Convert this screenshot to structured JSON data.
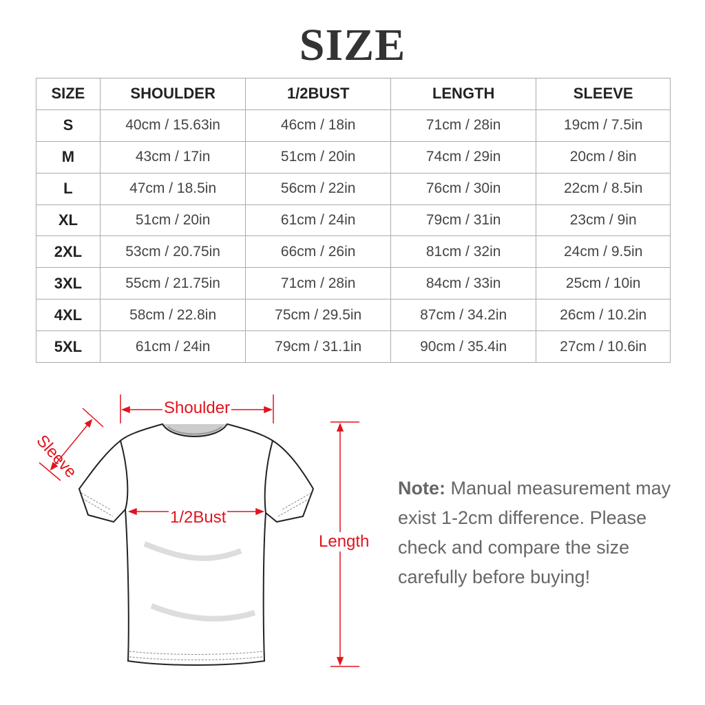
{
  "title": "SIZE",
  "table": {
    "headers": [
      "SIZE",
      "SHOULDER",
      "1/2BUST",
      "LENGTH",
      "SLEEVE"
    ],
    "rows": [
      [
        "S",
        "40cm / 15.63in",
        "46cm / 18in",
        "71cm / 28in",
        "19cm / 7.5in"
      ],
      [
        "M",
        "43cm / 17in",
        "51cm / 20in",
        "74cm / 29in",
        "20cm / 8in"
      ],
      [
        "L",
        "47cm / 18.5in",
        "56cm / 22in",
        "76cm / 30in",
        "22cm / 8.5in"
      ],
      [
        "XL",
        "51cm / 20in",
        "61cm / 24in",
        "79cm / 31in",
        "23cm / 9in"
      ],
      [
        "2XL",
        "53cm / 20.75in",
        "66cm / 26in",
        "81cm / 32in",
        "24cm / 9.5in"
      ],
      [
        "3XL",
        "55cm / 21.75in",
        "71cm / 28in",
        "84cm / 33in",
        "25cm / 10in"
      ],
      [
        "4XL",
        "58cm / 22.8in",
        "75cm / 29.5in",
        "87cm / 34.2in",
        "26cm / 10.2in"
      ],
      [
        "5XL",
        "61cm / 24in",
        "79cm / 31.1in",
        "90cm / 35.4in",
        "27cm / 10.6in"
      ]
    ]
  },
  "diagram": {
    "shoulder": "Shoulder",
    "sleeve": "Sleeve",
    "bust": "1/2Bust",
    "length": "Length",
    "accent": "#e0141e"
  },
  "note": {
    "label": "Note:",
    "text": " Manual measurement may exist 1-2cm difference. Please check and compare the size carefully before buying!"
  }
}
